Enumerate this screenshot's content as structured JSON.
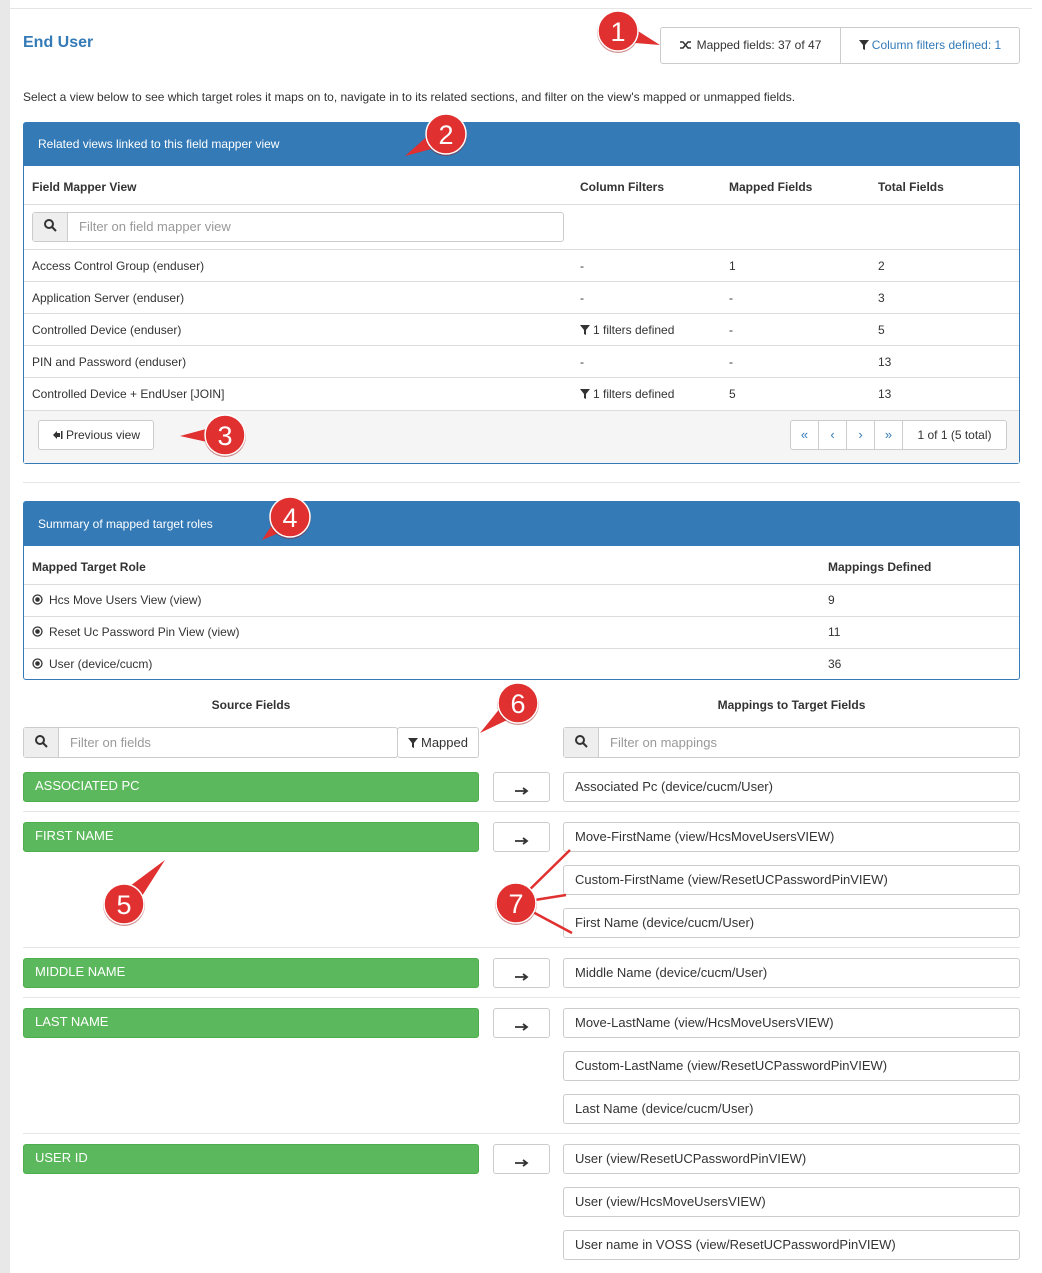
{
  "header": {
    "title": "End User",
    "mapped_fields": "Mapped fields: 37 of 47",
    "column_filters": "Column filters defined: 1"
  },
  "intro": "Select a view below to see which target roles it maps on to, navigate in to its related sections, and filter on the view's mapped or unmapped fields.",
  "related_views": {
    "title": "Related views linked to this field mapper view",
    "columns": [
      "Field Mapper View",
      "Column Filters",
      "Mapped Fields",
      "Total Fields"
    ],
    "filter_placeholder": "Filter on field mapper view",
    "rows": [
      [
        "Access Control Group (enduser)",
        "-",
        1,
        2
      ],
      [
        "Application Server (enduser)",
        "-",
        "-",
        3
      ],
      [
        "Controlled Device (enduser)",
        "1 filters defined",
        "-",
        5
      ],
      [
        "PIN and Password (enduser)",
        "-",
        "-",
        13
      ],
      [
        "Controlled Device + EndUser [JOIN]",
        "1 filters defined",
        5,
        13
      ]
    ],
    "previous": "Previous view",
    "pager": [
      "«",
      "‹",
      "›",
      "»"
    ],
    "page_info": "1 of 1 (5 total)"
  },
  "summary": {
    "title": "Summary of mapped target roles",
    "columns": [
      "Mapped Target Role",
      "Mappings Defined"
    ],
    "rows": [
      [
        "Hcs Move Users View (view)",
        9
      ],
      [
        "Reset Uc Password Pin View (view)",
        11
      ],
      [
        "User (device/cucm)",
        36
      ]
    ]
  },
  "source_fields": {
    "title": "Source Fields",
    "filter_placeholder": "Filter on fields",
    "mapped_button": "Mapped"
  },
  "mappings": {
    "title": "Mappings to Target Fields",
    "filter_placeholder": "Filter on mappings"
  },
  "fields": [
    {
      "name": "ASSOCIATED PC",
      "targets": [
        "Associated Pc (device/cucm/User)"
      ]
    },
    {
      "name": "FIRST NAME",
      "targets": [
        "Move-FirstName (view/HcsMoveUsersVIEW)",
        "Custom-FirstName (view/ResetUCPasswordPinVIEW)",
        "First Name (device/cucm/User)"
      ]
    },
    {
      "name": "MIDDLE NAME",
      "targets": [
        "Middle Name (device/cucm/User)"
      ]
    },
    {
      "name": "LAST NAME",
      "targets": [
        "Move-LastName (view/HcsMoveUsersVIEW)",
        "Custom-LastName (view/ResetUCPasswordPinVIEW)",
        "Last Name (device/cucm/User)"
      ]
    },
    {
      "name": "USER ID",
      "targets": [
        "User (view/ResetUCPasswordPinVIEW)",
        "User (view/HcsMoveUsersVIEW)",
        "User name in VOSS (view/ResetUCPasswordPinVIEW)"
      ]
    }
  ],
  "callouts": [
    "1",
    "2",
    "3",
    "4",
    "5",
    "6",
    "7"
  ]
}
